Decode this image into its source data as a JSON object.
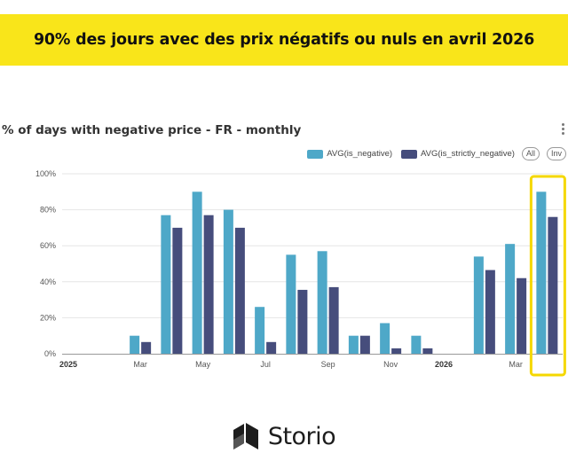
{
  "banner": {
    "title": "90% des jours avec des prix négatifs ou nuls en avril 2026"
  },
  "chart_header": {
    "title": "% of days with negative price - FR - monthly"
  },
  "legend": {
    "pill_all": "All",
    "pill_inv": "Inv"
  },
  "colors": {
    "banner_bg": "#f9e51a",
    "series_1": "#4ea8c8",
    "series_2": "#464d7c",
    "highlight": "#f5d800"
  },
  "footer": {
    "brand": "Storio"
  },
  "chart_data": {
    "type": "bar",
    "title": "% of days with negative price - FR - monthly",
    "xlabel": "",
    "ylabel": "",
    "ylim": [
      0,
      100
    ],
    "y_ticks": [
      "0%",
      "20%",
      "40%",
      "60%",
      "80%",
      "100%"
    ],
    "grid": true,
    "legend_position": "top-right",
    "categories": [
      "2025-01",
      "2025-02",
      "2025-03",
      "2025-04",
      "2025-05",
      "2025-06",
      "2025-07",
      "2025-08",
      "2025-09",
      "2025-10",
      "2025-11",
      "2025-12",
      "2026-01",
      "2026-02",
      "2026-03",
      "2026-04"
    ],
    "x_tick_labels": [
      {
        "category": "2025-01",
        "label": "2025",
        "bold": true
      },
      {
        "category": "2025-03",
        "label": "Mar",
        "bold": false
      },
      {
        "category": "2025-05",
        "label": "May",
        "bold": false
      },
      {
        "category": "2025-07",
        "label": "Jul",
        "bold": false
      },
      {
        "category": "2025-09",
        "label": "Sep",
        "bold": false
      },
      {
        "category": "2025-11",
        "label": "Nov",
        "bold": false
      },
      {
        "category": "2026-01",
        "label": "2026",
        "bold": true
      },
      {
        "category": "2026-03",
        "label": "Mar",
        "bold": false
      }
    ],
    "series": [
      {
        "name": "AVG(is_negative)",
        "color": "#4ea8c8",
        "values": [
          0,
          0,
          10,
          77,
          90,
          80,
          26,
          55,
          57,
          10,
          17,
          10,
          0,
          54,
          61,
          90
        ]
      },
      {
        "name": "AVG(is_strictly_negative)",
        "color": "#464d7c",
        "values": [
          0,
          0,
          6.5,
          70,
          77,
          70,
          6.5,
          35.5,
          37,
          10,
          3,
          3,
          0,
          46.5,
          42,
          76
        ]
      }
    ],
    "highlight_category": "2026-04"
  }
}
